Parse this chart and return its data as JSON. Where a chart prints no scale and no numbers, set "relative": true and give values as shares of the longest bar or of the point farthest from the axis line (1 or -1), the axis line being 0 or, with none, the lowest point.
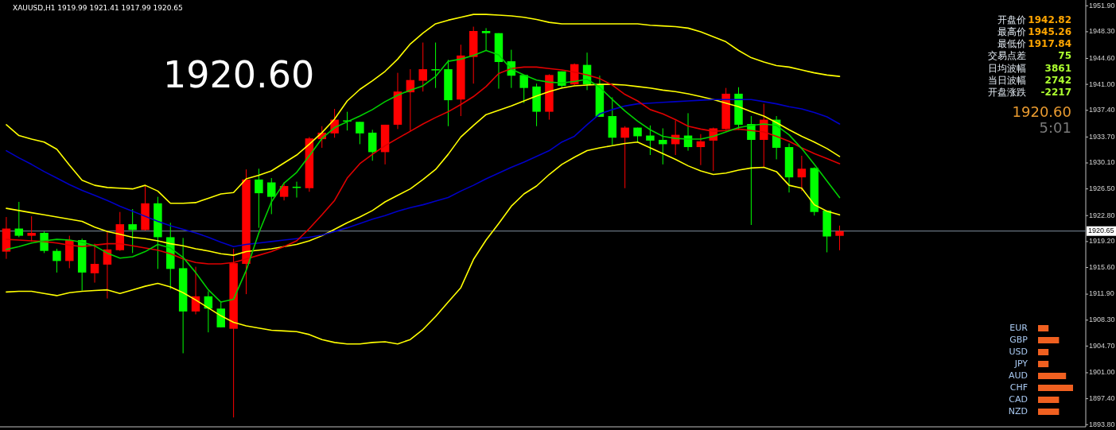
{
  "chart_data": [
    {
      "type": "candlestick",
      "title": "XAUUSD,H1  1919.99 1921.41 1917.99 1920.65",
      "tick_labels": "y",
      "categories": [
        null,
        null,
        null,
        null,
        null,
        null,
        null,
        null,
        null,
        null,
        null,
        null,
        null,
        null,
        null,
        null,
        null,
        null,
        null,
        null,
        null,
        null,
        null,
        null,
        null,
        null,
        null,
        null,
        null,
        null,
        null,
        null,
        null,
        null,
        null,
        null,
        null,
        null,
        null,
        null,
        null,
        null,
        null,
        null,
        null,
        null,
        null,
        null,
        null,
        null,
        null,
        null,
        null,
        null,
        null,
        null,
        null,
        null,
        null,
        null,
        null,
        null,
        null,
        null,
        null,
        null,
        null,
        null,
        null,
        null,
        null,
        null,
        null,
        null,
        null,
        null,
        null,
        null,
        null,
        null,
        null,
        null,
        null,
        null,
        null,
        null
      ],
      "ohlc": [
        [
          1917.8,
          1922.6,
          1916.8,
          1921.0
        ],
        [
          1921.0,
          1924.7,
          1919.8,
          1920.0
        ],
        [
          1920.0,
          1922.7,
          1919.2,
          1920.4
        ],
        [
          1920.4,
          1920.6,
          1917.6,
          1917.9
        ],
        [
          1917.9,
          1918.2,
          1914.9,
          1916.5
        ],
        [
          1916.5,
          1920.0,
          1915.5,
          1919.4
        ],
        [
          1919.4,
          1919.6,
          1912.4,
          1914.9
        ],
        [
          1914.8,
          1918.9,
          1913.5,
          1916.1
        ],
        [
          1916.0,
          1920.5,
          1911.3,
          1918.1
        ],
        [
          1918.0,
          1923.3,
          1917.9,
          1921.6
        ],
        [
          1921.6,
          1923.7,
          1917.6,
          1920.8
        ],
        [
          1920.8,
          1927.0,
          1920.7,
          1924.5
        ],
        [
          1924.5,
          1925.4,
          1915.4,
          1919.8
        ],
        [
          1919.8,
          1921.8,
          1912.6,
          1915.4
        ],
        [
          1915.5,
          1919.7,
          1903.7,
          1909.5
        ],
        [
          1909.5,
          1915.7,
          1909.1,
          1911.6
        ],
        [
          1911.6,
          1912.3,
          1906.6,
          1909.9
        ],
        [
          1909.9,
          1910.9,
          1907.3,
          1907.3
        ],
        [
          1907.1,
          1918.2,
          1894.8,
          1916.2
        ],
        [
          1916.1,
          1929.2,
          1911.9,
          1927.8
        ],
        [
          1927.8,
          1929.3,
          1921.1,
          1925.9
        ],
        [
          1927.4,
          1928.0,
          1923.0,
          1925.4
        ],
        [
          1925.4,
          1927.4,
          1924.9,
          1926.9
        ],
        [
          1926.8,
          1927.5,
          1925.3,
          1926.7
        ],
        [
          1926.6,
          1933.7,
          1926.1,
          1933.5
        ],
        [
          1933.4,
          1935.2,
          1932.2,
          1934.3
        ],
        [
          1934.2,
          1937.6,
          1933.6,
          1936.1
        ],
        [
          1936.0,
          1937.2,
          1934.6,
          1935.9
        ],
        [
          1935.8,
          1935.8,
          1932.7,
          1934.2
        ],
        [
          1934.3,
          1934.7,
          1930.4,
          1931.6
        ],
        [
          1931.6,
          1935.4,
          1929.9,
          1935.4
        ],
        [
          1935.4,
          1942.6,
          1934.8,
          1940.0
        ],
        [
          1939.9,
          1943.1,
          1934.5,
          1941.6
        ],
        [
          1941.5,
          1946.8,
          1940.0,
          1943.1
        ],
        [
          1943.1,
          1946.8,
          1940.5,
          1943.0
        ],
        [
          1943.1,
          1944.4,
          1935.2,
          1938.8
        ],
        [
          1938.9,
          1946.5,
          1936.6,
          1945.0
        ],
        [
          1944.8,
          1949.0,
          1941.1,
          1948.4
        ],
        [
          1948.4,
          1948.8,
          1945.7,
          1948.1
        ],
        [
          1948.1,
          1948.1,
          1940.4,
          1944.1
        ],
        [
          1944.2,
          1945.8,
          1940.5,
          1942.2
        ],
        [
          1942.3,
          1942.3,
          1938.4,
          1940.5
        ],
        [
          1940.7,
          1941.1,
          1935.2,
          1937.2
        ],
        [
          1937.2,
          1942.4,
          1936.1,
          1942.3
        ],
        [
          1942.8,
          1942.8,
          1940.5,
          1940.8
        ],
        [
          1941.0,
          1943.9,
          1940.9,
          1943.8
        ],
        [
          1943.7,
          1945.4,
          1940.2,
          1941.0
        ],
        [
          1940.9,
          1942.2,
          1936.5,
          1936.5
        ],
        [
          1936.6,
          1939.2,
          1932.6,
          1933.6
        ],
        [
          1933.6,
          1935.2,
          1926.6,
          1935.0
        ],
        [
          1935.0,
          1935.0,
          1933.0,
          1933.8
        ],
        [
          1933.9,
          1935.3,
          1931.2,
          1933.2
        ],
        [
          1933.3,
          1934.9,
          1929.9,
          1932.7
        ],
        [
          1932.7,
          1936.0,
          1931.2,
          1934.0
        ],
        [
          1933.9,
          1937.0,
          1931.8,
          1932.3
        ],
        [
          1932.3,
          1934.1,
          1929.8,
          1933.1
        ],
        [
          1933.2,
          1935.0,
          1929.0,
          1934.9
        ],
        [
          1934.8,
          1940.5,
          1934.7,
          1939.7
        ],
        [
          1939.7,
          1940.6,
          1934.7,
          1935.4
        ],
        [
          1935.5,
          1936.6,
          1921.5,
          1933.3
        ],
        [
          1933.3,
          1938.3,
          1929.5,
          1936.1
        ],
        [
          1936.1,
          1936.6,
          1930.6,
          1932.2
        ],
        [
          1932.3,
          1932.8,
          1926.0,
          1928.1
        ],
        [
          1928.1,
          1931.1,
          1926.2,
          1929.3
        ],
        [
          1929.4,
          1929.5,
          1922.8,
          1923.3
        ],
        [
          1923.5,
          1923.5,
          1917.7,
          1919.9
        ],
        [
          1919.99,
          1921.41,
          1917.99,
          1920.65
        ],
        null,
        null,
        null,
        null,
        null,
        null,
        null,
        null,
        null,
        null,
        null,
        null,
        null,
        null,
        null,
        null,
        null,
        null,
        null
      ],
      "colors": [
        "#ff0000",
        "#00ff00",
        "#ff0000",
        "#00ff00",
        "#00ff00",
        "#ff0000",
        "#00ff00",
        "#ff0000",
        "#ff0000",
        "#ff0000",
        "#00ff00",
        "#ff0000",
        "#00ff00",
        "#00ff00",
        "#00ff00",
        "#ff0000",
        "#00ff00",
        "#00ff00",
        "#ff0000",
        "#ff0000",
        "#00ff00",
        "#00ff00",
        "#ff0000",
        "#00ff00",
        "#ff0000",
        "#ff0000",
        "#ff0000",
        "#00ff00",
        "#00ff00",
        "#00ff00",
        "#ff0000",
        "#ff0000",
        "#ff0000",
        "#ff0000",
        "#00ff00",
        "#00ff00",
        "#ff0000",
        "#ff0000",
        "#00ff00",
        "#00ff00",
        "#00ff00",
        "#00ff00",
        "#00ff00",
        "#ff0000",
        "#00ff00",
        "#ff0000",
        "#00ff00",
        "#00ff00",
        "#00ff00",
        "#ff0000",
        "#00ff00",
        "#00ff00",
        "#00ff00",
        "#ff0000",
        "#00ff00",
        "#ff0000",
        "#ff0000",
        "#ff0000",
        "#00ff00",
        "#00ff00",
        "#ff0000",
        "#00ff00",
        "#00ff00",
        "#ff0000",
        "#00ff00",
        "#00ff00",
        "#ff0000",
        null,
        null,
        null,
        null,
        null,
        null,
        null,
        null,
        null,
        null,
        null,
        null,
        null,
        null,
        null,
        null,
        null,
        null,
        null
      ],
      "series": [
        {
          "type": "line",
          "color": "#ffff00",
          "values": [
            1935.4,
            1933.9,
            1933.4,
            1933.0,
            1932.0,
            1929.8,
            1927.7,
            1927.0,
            1926.7,
            1926.6,
            1926.5,
            1927.0,
            1926.2,
            1924.5,
            1924.5,
            1924.6,
            1925.2,
            1925.8,
            1926.0,
            1927.9,
            1928.4,
            1929.0,
            1930.1,
            1931.2,
            1932.7,
            1934.3,
            1936.2,
            1938.7,
            1940.3,
            1941.5,
            1942.8,
            1944.5,
            1946.6,
            1948.1,
            1949.4,
            1949.9,
            1950.3,
            1950.7,
            1950.7,
            1950.6,
            1950.5,
            1950.3,
            1950.0,
            1949.6,
            1949.4,
            1949.4,
            1949.4,
            1949.4,
            1949.4,
            1949.4,
            1949.4,
            1949.2,
            1949.1,
            1949.0,
            1948.8,
            1948.3,
            1947.6,
            1946.9,
            1945.7,
            1944.7,
            1944.1,
            1943.6,
            1943.4,
            1943.0,
            1942.6,
            1942.3,
            1942.1,
            null,
            null,
            null,
            null,
            null,
            null,
            null,
            null,
            null,
            null,
            null,
            null,
            null,
            null,
            null,
            null,
            null,
            null,
            null
          ]
        },
        {
          "type": "line",
          "color": "#ffff00",
          "values": [
            1923.8,
            1923.5,
            1923.2,
            1922.9,
            1922.6,
            1922.3,
            1922.0,
            1921.2,
            1920.6,
            1920.2,
            1919.8,
            1919.6,
            1919.3,
            1918.9,
            1918.6,
            1918.2,
            1917.9,
            1917.5,
            1917.3,
            1917.8,
            1918.0,
            1918.2,
            1918.5,
            1918.8,
            1919.3,
            1920.0,
            1920.9,
            1921.8,
            1922.6,
            1923.5,
            1924.7,
            1925.6,
            1926.5,
            1927.8,
            1929.2,
            1931.3,
            1933.7,
            1935.3,
            1936.8,
            1937.4,
            1938.0,
            1938.7,
            1939.4,
            1940.0,
            1940.5,
            1940.8,
            1940.9,
            1941.0,
            1941.0,
            1940.9,
            1940.7,
            1940.5,
            1940.2,
            1940.0,
            1939.7,
            1939.3,
            1938.9,
            1938.4,
            1937.9,
            1937.2,
            1936.6,
            1935.7,
            1934.7,
            1933.8,
            1933.0,
            1932.1,
            1931.0,
            null,
            null,
            null,
            null,
            null,
            null,
            null,
            null,
            null,
            null,
            null,
            null,
            null,
            null,
            null,
            null,
            null,
            null,
            null
          ]
        },
        {
          "type": "line",
          "color": "#ffff00",
          "values": [
            1912.2,
            1912.3,
            1912.3,
            1912.0,
            1911.7,
            1912.1,
            1912.3,
            1912.4,
            1912.5,
            1912.0,
            1912.5,
            1913.0,
            1913.4,
            1912.9,
            1912.1,
            1911.1,
            1910.0,
            1908.9,
            1908.0,
            1907.5,
            1907.2,
            1906.9,
            1906.8,
            1906.7,
            1906.3,
            1905.6,
            1905.2,
            1905.0,
            1905.0,
            1905.2,
            1905.3,
            1905.0,
            1905.6,
            1907.0,
            1908.8,
            1910.8,
            1912.8,
            1916.7,
            1919.4,
            1921.7,
            1924.1,
            1925.8,
            1926.9,
            1928.5,
            1929.9,
            1930.9,
            1931.8,
            1932.2,
            1932.5,
            1932.8,
            1933.0,
            1932.2,
            1931.4,
            1930.6,
            1929.7,
            1929.0,
            1928.5,
            1928.7,
            1929.1,
            1929.4,
            1929.5,
            1928.9,
            1927.0,
            1926.6,
            1924.3,
            1923.4,
            1922.9,
            null,
            null,
            null,
            null,
            null,
            null,
            null,
            null,
            null,
            null,
            null,
            null,
            null,
            null,
            null,
            null,
            null,
            null,
            null
          ]
        },
        {
          "type": "line",
          "color": "#0000c8",
          "values": [
            1931.8,
            1930.8,
            1929.9,
            1928.9,
            1928.0,
            1927.1,
            1926.3,
            1925.6,
            1924.9,
            1924.1,
            1923.4,
            1922.7,
            1922.0,
            1921.4,
            1920.9,
            1920.4,
            1919.8,
            1919.1,
            1918.5,
            1918.8,
            1919.0,
            1919.2,
            1919.4,
            1919.6,
            1919.8,
            1920.1,
            1920.6,
            1921.1,
            1921.7,
            1922.3,
            1922.8,
            1923.4,
            1923.9,
            1924.3,
            1924.8,
            1925.3,
            1926.2,
            1927.0,
            1927.9,
            1928.7,
            1929.5,
            1930.2,
            1931.0,
            1931.8,
            1933.0,
            1933.8,
            1935.4,
            1936.9,
            1937.5,
            1938.0,
            1938.3,
            1938.4,
            1938.5,
            1938.6,
            1938.7,
            1938.8,
            1938.9,
            1938.9,
            1938.9,
            1938.9,
            1938.6,
            1938.3,
            1937.9,
            1937.6,
            1937.1,
            1936.5,
            1935.5,
            null,
            null,
            null,
            null,
            null,
            null,
            null,
            null,
            null,
            null,
            null,
            null,
            null,
            null,
            null,
            null,
            null,
            null,
            null
          ]
        },
        {
          "type": "line",
          "color": "#e00000",
          "values": [
            1919.5,
            1919.4,
            1919.3,
            1919.2,
            1919.0,
            1918.7,
            1918.5,
            1918.7,
            1918.9,
            1918.9,
            1918.6,
            1918.3,
            1918.0,
            1917.5,
            1916.8,
            1916.3,
            1916.1,
            1916.1,
            1916.3,
            1916.8,
            1917.3,
            1917.8,
            1918.5,
            1919.3,
            1921.0,
            1922.9,
            1924.9,
            1928.0,
            1930.0,
            1931.3,
            1932.5,
            1933.5,
            1934.5,
            1935.5,
            1936.4,
            1937.2,
            1938.2,
            1939.3,
            1940.7,
            1942.5,
            1943.2,
            1943.4,
            1943.4,
            1943.2,
            1943.0,
            1942.7,
            1942.3,
            1941.8,
            1940.9,
            1939.6,
            1938.7,
            1937.5,
            1936.9,
            1936.1,
            1935.2,
            1934.8,
            1934.5,
            1934.6,
            1934.8,
            1934.6,
            1934.4,
            1933.8,
            1933.1,
            1932.2,
            1931.4,
            1930.7,
            1930.0,
            null,
            null,
            null,
            null,
            null,
            null,
            null,
            null,
            null,
            null,
            null,
            null,
            null,
            null,
            null,
            null,
            null,
            null,
            null
          ]
        },
        {
          "type": "line",
          "color": "#00d000",
          "values": [
            1918.1,
            1918.5,
            1919.0,
            1919.3,
            1919.5,
            1919.4,
            1919.1,
            1918.6,
            1917.6,
            1916.9,
            1917.1,
            1917.8,
            1918.8,
            1918.3,
            1917.0,
            1914.9,
            1912.5,
            1910.8,
            1911.2,
            1915.2,
            1920.4,
            1924.7,
            1927.3,
            1928.8,
            1931.1,
            1933.5,
            1935.0,
            1935.8,
            1936.6,
            1937.5,
            1938.6,
            1939.5,
            1940.2,
            1940.8,
            1942.1,
            1944.2,
            1944.5,
            1945.0,
            1945.7,
            1945.1,
            1943.1,
            1942.3,
            1941.6,
            1941.3,
            1941.2,
            1941.4,
            1941.7,
            1940.6,
            1938.9,
            1937.3,
            1935.9,
            1934.7,
            1933.8,
            1933.5,
            1933.4,
            1933.4,
            1933.8,
            1934.4,
            1935.0,
            1935.3,
            1935.5,
            1935.3,
            1934.0,
            1932.1,
            1929.9,
            1927.6,
            1925.3,
            null,
            null,
            null,
            null,
            null,
            null,
            null,
            null,
            null,
            null,
            null,
            null,
            null,
            null,
            null,
            null,
            null,
            null,
            null
          ]
        }
      ],
      "ylim": [
        1893.5,
        1952.7
      ],
      "yticks": [
        {
          "value": 1951.9,
          "label": "1951.90"
        },
        {
          "value": 1948.3,
          "label": "1948.30"
        },
        {
          "value": 1944.6,
          "label": "1944.60"
        },
        {
          "value": 1941.0,
          "label": "1941.00"
        },
        {
          "value": 1937.4,
          "label": "1937.40"
        },
        {
          "value": 1933.7,
          "label": "1933.70"
        },
        {
          "value": 1930.1,
          "label": "1930.10"
        },
        {
          "value": 1926.5,
          "label": "1926.50"
        },
        {
          "value": 1922.8,
          "label": "1922.80"
        },
        {
          "value": 1919.2,
          "label": "1919.20"
        },
        {
          "value": 1915.6,
          "label": "1915.60"
        },
        {
          "value": 1911.9,
          "label": "1911.90"
        },
        {
          "value": 1908.3,
          "label": "1908.30"
        },
        {
          "value": 1904.7,
          "label": "1904.70"
        },
        {
          "value": 1901.0,
          "label": "1901.00"
        },
        {
          "value": 1897.4,
          "label": "1897.40"
        },
        {
          "value": 1893.8,
          "label": "1893.80"
        }
      ],
      "ref_lines": [
        {
          "axis": "y",
          "value": 1920.65,
          "label": "1920.65",
          "color": "#8090a0"
        }
      ],
      "annotations": [
        "1920.60"
      ]
    },
    {
      "type": "other",
      "annotations": [
        "开盘价",
        "1942.82",
        "最高价",
        "1945.26",
        "最低价",
        "1917.84",
        "交易点差",
        "75",
        "日均波幅",
        "3861",
        "当日波幅",
        "2742",
        "开盘涨跌",
        "-2217",
        "1920.60",
        "5:01"
      ]
    },
    {
      "type": "bar",
      "orientation": "horizontal",
      "relative": true,
      "categories": [
        "EUR",
        "GBP",
        "USD",
        "JPY",
        "AUD",
        "CHF",
        "CAD",
        "NZD"
      ],
      "values": [
        0.3,
        0.6,
        0.3,
        0.3,
        0.8,
        1,
        0.6,
        0.6
      ],
      "color": "#f06020"
    }
  ]
}
